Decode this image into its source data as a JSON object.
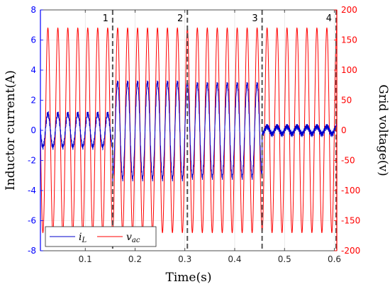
{
  "chart_data": {
    "type": "line",
    "xlabel": "Time(s)",
    "ylabel_left": "Inductor current(A)",
    "ylabel_right": "Grid voltage(v)",
    "xlim": [
      0.01,
      0.605
    ],
    "ylim_left": [
      -8,
      8
    ],
    "ylim_right": [
      -200,
      200
    ],
    "x_ticks": [
      0.1,
      0.2,
      0.3,
      0.4,
      0.5,
      0.6
    ],
    "x_tick_labels": [
      "0.1",
      "0.2",
      "0.3",
      "0.4",
      "0.5",
      "0.6"
    ],
    "y_ticks_left": [
      -8,
      -6,
      -4,
      -2,
      0,
      2,
      4,
      6,
      8
    ],
    "y_tick_labels_left": [
      "-8",
      "-6",
      "-4",
      "-2",
      "0",
      "2",
      "4",
      "6",
      "8"
    ],
    "y_ticks_right": [
      -200,
      -150,
      -100,
      -50,
      0,
      50,
      100,
      150,
      200
    ],
    "y_tick_labels_right": [
      "-200",
      "-150",
      "-100",
      "-50",
      "0",
      "50",
      "100",
      "150",
      "200"
    ],
    "grid": true,
    "legend_position": "bottom-left",
    "colors": {
      "current": "#0000cc",
      "voltage": "#ff0000",
      "left_axis": "#0000ff",
      "right_axis": "#ff0000"
    },
    "series": [
      {
        "name": "i_L",
        "label_main": "i",
        "label_sub": "L",
        "axis": "left",
        "waveform": "sine",
        "frequency_hz": 50,
        "segments": [
          {
            "x_start": 0.01,
            "x_end": 0.155,
            "amplitude": 1.1
          },
          {
            "x_start": 0.155,
            "x_end": 0.305,
            "amplitude": 3.2
          },
          {
            "x_start": 0.305,
            "x_end": 0.455,
            "amplitude": 3.1
          },
          {
            "x_start": 0.455,
            "x_end": 0.605,
            "amplitude": 0.25
          }
        ]
      },
      {
        "name": "v_ac",
        "label_main": "v",
        "label_sub": "ac",
        "axis": "right",
        "waveform": "sine",
        "frequency_hz": 50,
        "amplitude": 170
      }
    ],
    "event_lines": [
      {
        "x": 0.155,
        "label": "1"
      },
      {
        "x": 0.305,
        "label": "2"
      },
      {
        "x": 0.455,
        "label": "3"
      },
      {
        "x": 0.605,
        "label": "4"
      }
    ]
  }
}
